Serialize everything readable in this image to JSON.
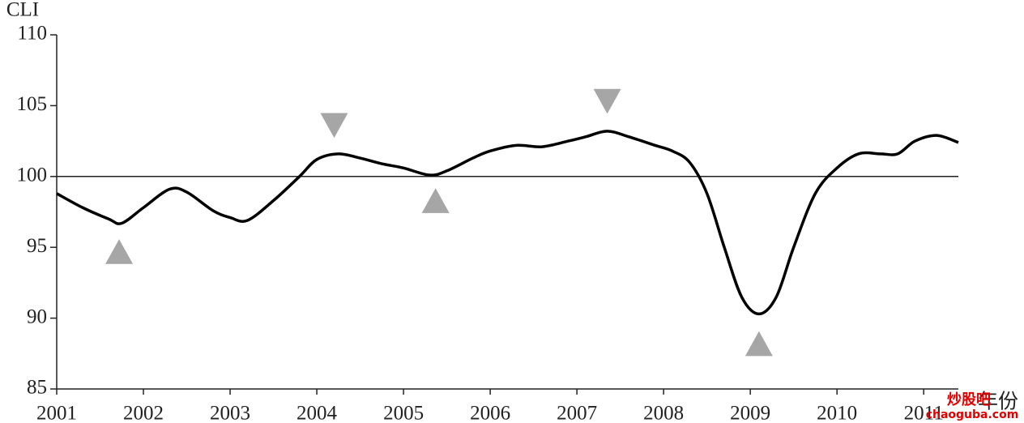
{
  "chart_data": {
    "type": "line",
    "ylabel": "CLI",
    "xlabel": "年份",
    "x": [
      2001.0,
      2001.3,
      2001.6,
      2001.75,
      2002.0,
      2002.3,
      2002.5,
      2002.8,
      2003.0,
      2003.2,
      2003.5,
      2003.8,
      2004.0,
      2004.25,
      2004.5,
      2004.75,
      2005.0,
      2005.3,
      2005.5,
      2005.8,
      2006.0,
      2006.3,
      2006.6,
      2006.9,
      2007.1,
      2007.35,
      2007.6,
      2007.9,
      2008.1,
      2008.3,
      2008.5,
      2008.7,
      2008.9,
      2009.1,
      2009.3,
      2009.5,
      2009.75,
      2010.0,
      2010.25,
      2010.5,
      2010.7,
      2010.9,
      2011.15,
      2011.4
    ],
    "series": [
      {
        "color": "#000000",
        "values": [
          98.8,
          97.8,
          97.0,
          96.7,
          97.8,
          99.1,
          98.9,
          97.6,
          97.1,
          96.9,
          98.3,
          100.0,
          101.2,
          101.6,
          101.3,
          100.9,
          100.6,
          100.1,
          100.4,
          101.3,
          101.8,
          102.2,
          102.1,
          102.5,
          102.8,
          103.2,
          102.8,
          102.2,
          101.8,
          101.0,
          98.8,
          95.0,
          91.5,
          90.3,
          91.5,
          95.0,
          98.8,
          100.6,
          101.6,
          101.6,
          101.6,
          102.5,
          102.9,
          102.4
        ]
      }
    ],
    "reference_line": 100,
    "turning_points": {
      "color": "#a6a6a6",
      "x": [
        2001.72,
        2004.2,
        2005.37,
        2007.35,
        2009.1
      ],
      "y": [
        94.6,
        103.7,
        98.2,
        105.4,
        88.1
      ],
      "direction": [
        "up",
        "down",
        "up",
        "down",
        "up"
      ]
    },
    "xlim": [
      2001,
      2011.4
    ],
    "xticks": [
      2001,
      2002,
      2003,
      2004,
      2005,
      2006,
      2007,
      2008,
      2009,
      2010,
      2011
    ],
    "ylim": [
      85,
      110
    ],
    "yticks": [
      85,
      90,
      95,
      100,
      105,
      110
    ],
    "watermark": {
      "brand": "炒股吧",
      "url": "chaoguba.com"
    }
  }
}
